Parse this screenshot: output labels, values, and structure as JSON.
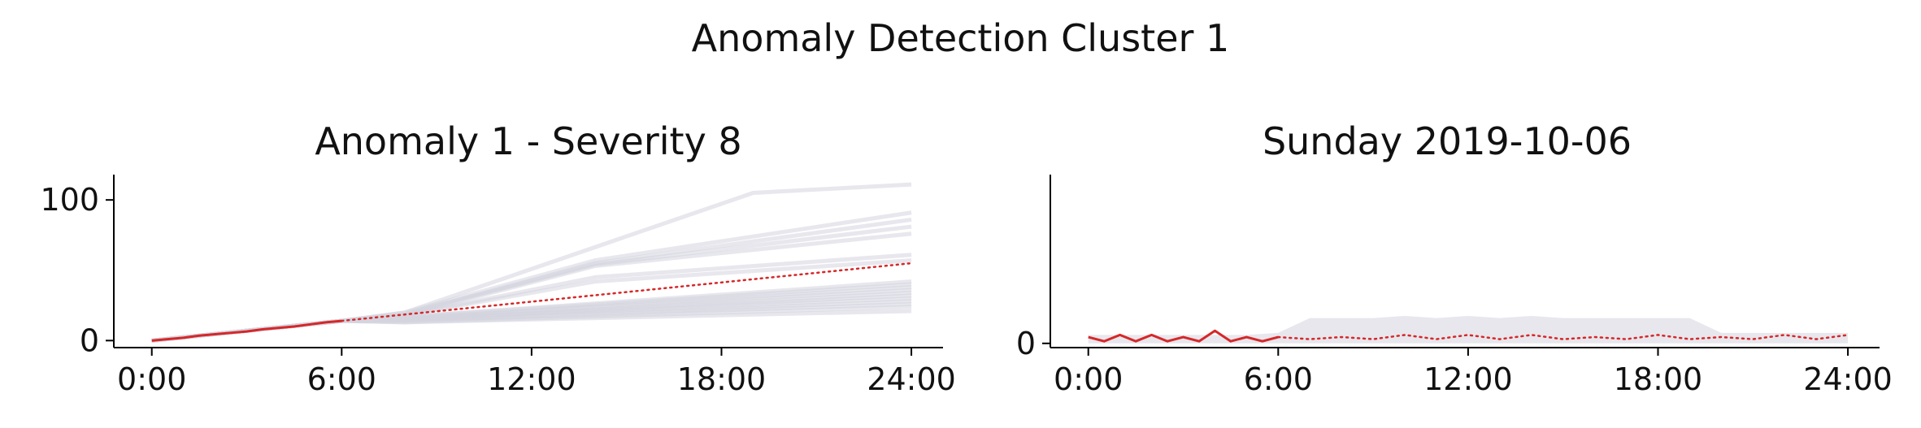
{
  "figure_title": "Anomaly Detection Cluster 1",
  "colors": {
    "anomaly": "#d62728",
    "reference": "#d3d3de",
    "axis": "#000000"
  },
  "chart_data": [
    {
      "type": "line",
      "title": "Anomaly 1 - Severity 8",
      "xlabel": "",
      "ylabel": "",
      "xlim": [
        -1.2,
        25
      ],
      "ylim": [
        -5,
        118
      ],
      "xticks": [
        0,
        6,
        12,
        18,
        24
      ],
      "xticklabels": [
        "0:00",
        "6:00",
        "12:00",
        "18:00",
        "24:00"
      ],
      "yticks": [
        0,
        100
      ],
      "yticklabels": [
        "0",
        "100"
      ],
      "grid": false,
      "legend": "none",
      "reference_series": [
        {
          "x": [
            0,
            6,
            8,
            19,
            24
          ],
          "values": [
            0,
            14,
            20,
            105,
            111
          ]
        },
        {
          "x": [
            0,
            6,
            8,
            14,
            24
          ],
          "values": [
            0,
            14,
            20,
            57,
            91
          ]
        },
        {
          "x": [
            0,
            6,
            8,
            14,
            24
          ],
          "values": [
            0,
            14,
            19,
            55,
            86
          ]
        },
        {
          "x": [
            0,
            6,
            8,
            14,
            24
          ],
          "values": [
            0,
            14,
            19,
            54,
            81
          ]
        },
        {
          "x": [
            0,
            6,
            8,
            14,
            24
          ],
          "values": [
            0,
            14,
            18,
            53,
            76
          ]
        },
        {
          "x": [
            0,
            6,
            8,
            14,
            24
          ],
          "values": [
            0,
            14,
            18,
            45,
            61
          ]
        },
        {
          "x": [
            0,
            6,
            8,
            14,
            24
          ],
          "values": [
            0,
            14,
            18,
            42,
            57
          ]
        },
        {
          "x": [
            0,
            6,
            8,
            24
          ],
          "values": [
            0,
            14,
            17,
            42
          ]
        },
        {
          "x": [
            0,
            6,
            8,
            24
          ],
          "values": [
            0,
            14,
            17,
            40
          ]
        },
        {
          "x": [
            0,
            6,
            8,
            24
          ],
          "values": [
            0,
            14,
            16,
            38
          ]
        },
        {
          "x": [
            0,
            6,
            8,
            24
          ],
          "values": [
            0,
            14,
            16,
            36
          ]
        },
        {
          "x": [
            0,
            6,
            8,
            24
          ],
          "values": [
            0,
            14,
            15,
            34
          ]
        },
        {
          "x": [
            0,
            6,
            8,
            24
          ],
          "values": [
            0,
            14,
            15,
            32
          ]
        },
        {
          "x": [
            0,
            6,
            8,
            24
          ],
          "values": [
            0,
            14,
            15,
            30
          ]
        },
        {
          "x": [
            0,
            6,
            8,
            24
          ],
          "values": [
            0,
            14,
            14,
            28
          ]
        },
        {
          "x": [
            0,
            6,
            8,
            24
          ],
          "values": [
            0,
            14,
            14,
            26
          ]
        },
        {
          "x": [
            0,
            6,
            8,
            24
          ],
          "values": [
            0,
            14,
            13,
            24
          ]
        },
        {
          "x": [
            0,
            6,
            8,
            24
          ],
          "values": [
            0,
            14,
            13,
            21
          ]
        }
      ],
      "anomaly_series": {
        "x": [
          0,
          0.5,
          1,
          1.5,
          2,
          2.5,
          3,
          3.5,
          4,
          4.5,
          5,
          5.5,
          6
        ],
        "values": [
          0,
          1,
          2,
          3.5,
          4.5,
          5.5,
          6.5,
          8,
          9,
          10,
          11.5,
          13,
          14
        ]
      },
      "forecast_series": {
        "x": [
          6,
          24
        ],
        "values": [
          14,
          55
        ]
      }
    },
    {
      "type": "line",
      "title": "Sunday 2019-10-06",
      "xlabel": "",
      "ylabel": "",
      "xlim": [
        -1.2,
        25
      ],
      "ylim": [
        -1,
        40
      ],
      "xticks": [
        0,
        6,
        12,
        18,
        24
      ],
      "xticklabels": [
        "0:00",
        "6:00",
        "12:00",
        "18:00",
        "24:00"
      ],
      "yticks": [
        0
      ],
      "yticklabels": [
        "0"
      ],
      "grid": false,
      "legend": "none",
      "reference_band": {
        "x": [
          0,
          1,
          2,
          3,
          4,
          5,
          6,
          7,
          8,
          9,
          10,
          11,
          12,
          13,
          14,
          15,
          16,
          17,
          18,
          19,
          20,
          21,
          22,
          23,
          24
        ],
        "low": [
          0,
          0,
          0,
          0,
          0,
          0,
          0,
          0,
          0,
          0,
          0,
          0,
          0,
          0,
          0,
          0,
          0,
          0,
          0,
          0,
          0,
          0,
          0,
          0,
          0
        ],
        "high": [
          2,
          2,
          2,
          2,
          2,
          2,
          2.5,
          6,
          6,
          6,
          6.5,
          6,
          6.5,
          6,
          6.5,
          6,
          6,
          6,
          6,
          6,
          2.5,
          2.5,
          2.5,
          2.5,
          2.5
        ]
      },
      "anomaly_series": {
        "x": [
          0,
          0.5,
          1,
          1.5,
          2,
          2.5,
          3,
          3.5,
          4,
          4.5,
          5,
          5.5,
          6
        ],
        "values": [
          1.5,
          0.5,
          2,
          0.5,
          2,
          0.5,
          1.5,
          0.5,
          3,
          0.5,
          1.5,
          0.5,
          1.5
        ]
      },
      "forecast_series": {
        "x": [
          6,
          7,
          8,
          9,
          10,
          11,
          12,
          13,
          14,
          15,
          16,
          17,
          18,
          19,
          20,
          21,
          22,
          23,
          24
        ],
        "values": [
          1.5,
          1,
          1.5,
          1,
          2,
          1,
          2,
          1,
          2,
          1,
          1.5,
          1,
          2,
          1,
          1.5,
          1,
          2,
          1,
          2
        ]
      }
    }
  ]
}
